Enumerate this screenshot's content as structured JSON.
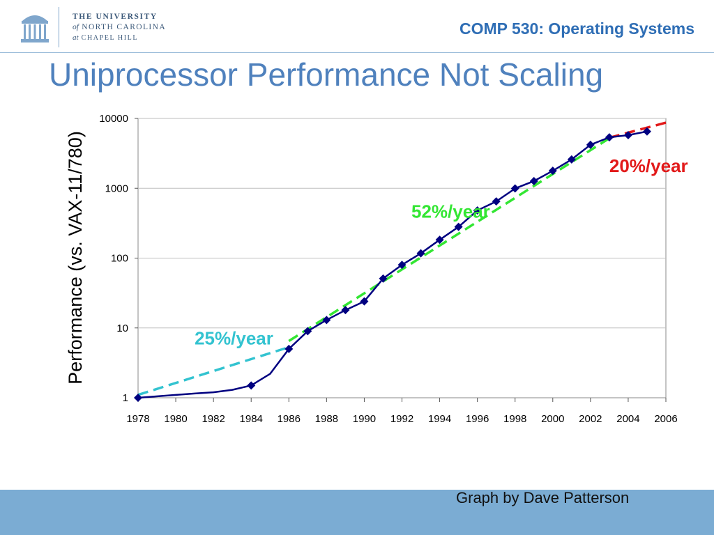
{
  "header": {
    "university_line1": "THE UNIVERSITY",
    "university_line2_prefix": "of",
    "university_line2": "NORTH CAROLINA",
    "university_line3_prefix": "at",
    "university_line3": "CHAPEL HILL",
    "course_title": "COMP 530: Operating Systems",
    "logo_icon": "old-well-icon"
  },
  "slide": {
    "title": "Uniprocessor Performance Not Scaling",
    "credit": "Graph by Dave Patterson"
  },
  "colors": {
    "title": "#4f81bd",
    "data_line": "#000080",
    "trend_25": "#33c3d0",
    "trend_52": "#33e633",
    "trend_20": "#e21a1a",
    "footer": "#7bacd3"
  },
  "chart_data": {
    "type": "line",
    "title": "",
    "xlabel": "",
    "ylabel": "Performance (vs. VAX-11/780)",
    "yscale": "log",
    "ylim": [
      1,
      10000
    ],
    "xlim": [
      1978,
      2006
    ],
    "x_ticks": [
      "1978",
      "1980",
      "1982",
      "1984",
      "1986",
      "1988",
      "1990",
      "1992",
      "1994",
      "1996",
      "1998",
      "2000",
      "2002",
      "2004",
      "2006"
    ],
    "y_ticks": [
      "1",
      "10",
      "100",
      "1000",
      "10000"
    ],
    "grid": true,
    "series": [
      {
        "name": "Performance",
        "marker": "diamond",
        "marker_points": [
          [
            1978,
            1
          ],
          [
            1984,
            1.5
          ],
          [
            1986,
            5
          ],
          [
            1987,
            9
          ],
          [
            1988,
            13
          ],
          [
            1989,
            18
          ],
          [
            1990,
            24
          ],
          [
            1991,
            51
          ],
          [
            1992,
            80
          ],
          [
            1993,
            117
          ],
          [
            1994,
            183
          ],
          [
            1995,
            280
          ],
          [
            1996,
            481
          ],
          [
            1997,
            649
          ],
          [
            1998,
            993
          ],
          [
            1999,
            1267
          ],
          [
            2000,
            1779
          ],
          [
            2001,
            2584
          ],
          [
            2002,
            4195
          ],
          [
            2003,
            5364
          ],
          [
            2004,
            5764
          ],
          [
            2005,
            6505
          ]
        ],
        "line_points": [
          [
            1978,
            1
          ],
          [
            1980,
            1.1
          ],
          [
            1981,
            1.15
          ],
          [
            1982,
            1.2
          ],
          [
            1983,
            1.3
          ],
          [
            1984,
            1.5
          ],
          [
            1985,
            2.2
          ],
          [
            1986,
            5
          ],
          [
            1987,
            9
          ],
          [
            1988,
            13
          ],
          [
            1989,
            18
          ],
          [
            1990,
            24
          ],
          [
            1991,
            51
          ],
          [
            1992,
            80
          ],
          [
            1993,
            117
          ],
          [
            1994,
            183
          ],
          [
            1995,
            280
          ],
          [
            1996,
            481
          ],
          [
            1997,
            649
          ],
          [
            1998,
            993
          ],
          [
            1999,
            1267
          ],
          [
            2000,
            1779
          ],
          [
            2001,
            2584
          ],
          [
            2002,
            4195
          ],
          [
            2003,
            5364
          ],
          [
            2004,
            5764
          ],
          [
            2005,
            6505
          ]
        ]
      }
    ],
    "trendlines": [
      {
        "name": "25%/year",
        "points": [
          [
            1978,
            1.1
          ],
          [
            1986,
            5.3
          ]
        ],
        "color_key": "trend_25"
      },
      {
        "name": "52%/year",
        "points": [
          [
            1986,
            6.5
          ],
          [
            2003,
            5200
          ]
        ],
        "color_key": "trend_52"
      },
      {
        "name": "20%/year",
        "points": [
          [
            2003,
            5300
          ],
          [
            2006,
            8700
          ]
        ],
        "color_key": "trend_20"
      }
    ],
    "annotations": [
      {
        "text": "25%/year",
        "x": 1981,
        "y": 5.8,
        "color_key": "trend_25"
      },
      {
        "text": "52%/year",
        "x": 1992.5,
        "y": 380,
        "color_key": "trend_52"
      },
      {
        "text": "20%/year",
        "x": 2003,
        "y": 1700,
        "color_key": "trend_20"
      }
    ]
  }
}
